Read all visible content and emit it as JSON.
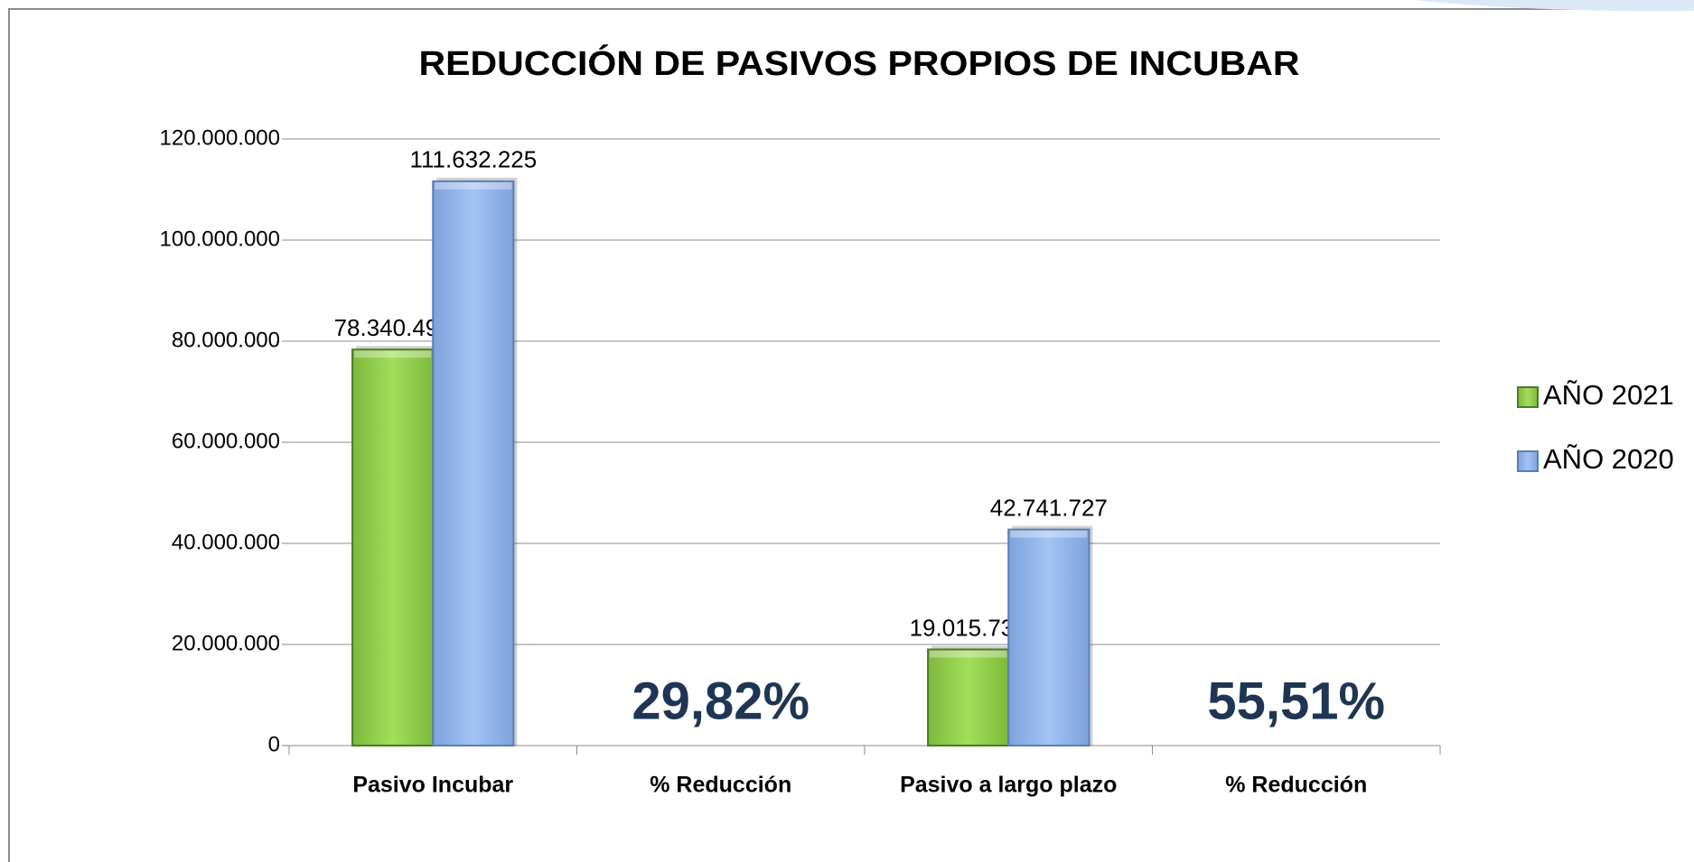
{
  "chart_data": {
    "type": "bar",
    "title": "REDUCCIÓN DE PASIVOS PROPIOS DE INCUBAR",
    "categories": [
      "Pasivo Incubar",
      "% Reducción",
      "Pasivo a largo plazo",
      "% Reducción"
    ],
    "series": [
      {
        "name": "AÑO 2021",
        "color": "#9bd653",
        "values": [
          78340490,
          null,
          19015739,
          null
        ],
        "value_labels": [
          "78.340.490",
          null,
          "19.015.739",
          null
        ]
      },
      {
        "name": "AÑO 2020",
        "color": "#9bbcef",
        "values": [
          111632225,
          null,
          42741727,
          null
        ],
        "value_labels": [
          "111.632.225",
          null,
          "42.741.727",
          null
        ]
      }
    ],
    "annotations": [
      null,
      "29,82%",
      null,
      "55,51%"
    ],
    "ylim": [
      0,
      120000000
    ],
    "yticks": [
      0,
      {
        "value": 20000000,
        "label": "20.000.000"
      },
      {
        "value": 40000000,
        "label": "40.000.000"
      },
      {
        "value": 60000000,
        "label": "60.000.000"
      },
      {
        "value": 80000000,
        "label": "80.000.000"
      },
      {
        "value": 100000000,
        "label": "100.000.000"
      },
      {
        "value": 120000000,
        "label": "120.000.000"
      }
    ],
    "grid": true,
    "legend": "right"
  }
}
